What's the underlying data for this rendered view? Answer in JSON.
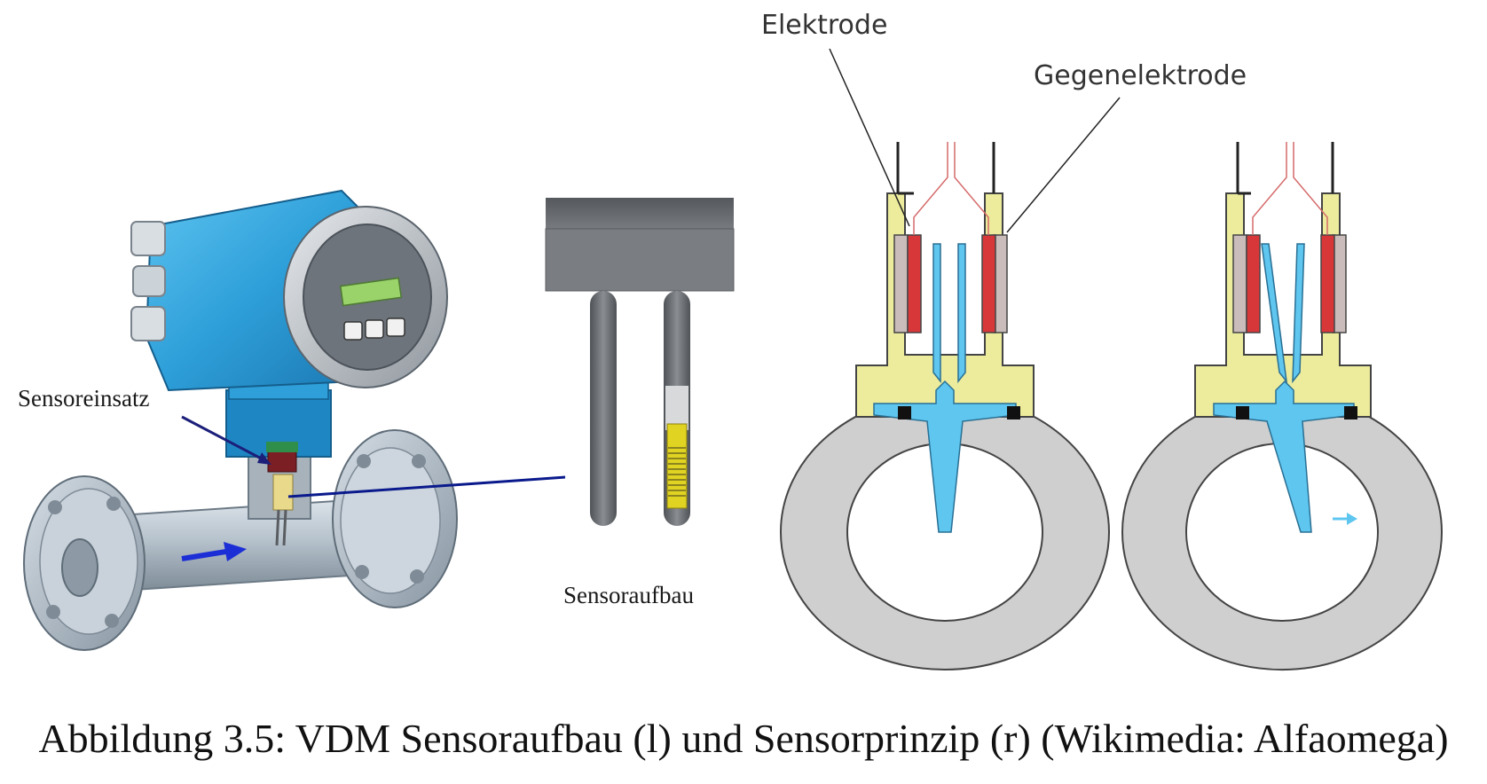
{
  "figure": {
    "labels": {
      "sensor_insert": "Sensoreinsatz",
      "sensor_structure": "Sensoraufbau",
      "electrode": "Elektrode",
      "counter_electrode": "Gegenelektrode"
    },
    "caption": "Abbildung 3.5: VDM Sensoraufbau (l) und Sensorprinzip (r) (Wikimedia: Alfaomega)"
  },
  "colors": {
    "housing_blue": "#2e9fd9",
    "pipe_grey": "#a9b6c1",
    "sensor_grey": "#6b6e72",
    "bracket_yellow": "#ecec9c",
    "electrode_red": "#d8373a",
    "fluid_light_blue": "#5ec6ef",
    "ring_grey": "#cfcfcf",
    "arrow_blue": "#1c2fd6"
  }
}
